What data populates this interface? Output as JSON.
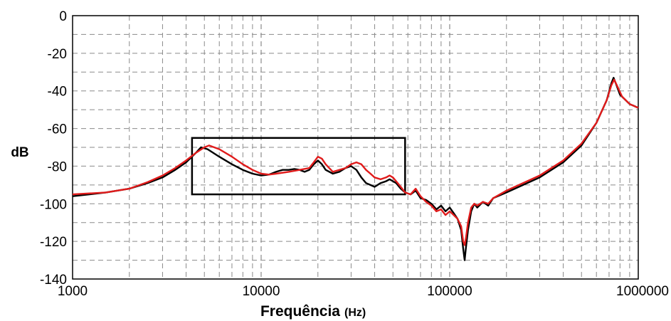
{
  "chart_data": {
    "type": "line",
    "xscale": "log",
    "xlim": [
      1000,
      1000000
    ],
    "ylim": [
      -140,
      0
    ],
    "xticks": [
      "1000",
      "10000",
      "100000",
      "1000000"
    ],
    "xtick_values": [
      1000,
      10000,
      100000,
      1000000
    ],
    "yticks": [
      "0",
      "-20",
      "-40",
      "-60",
      "-80",
      "-100",
      "-120",
      "-140"
    ],
    "ytick_values": [
      0,
      -20,
      -40,
      -60,
      -80,
      -100,
      -120,
      -140
    ],
    "xlabel": "Frequência",
    "xlabel_unit": "(Hz)",
    "ylabel": "dB",
    "grid": true,
    "highlight_box": {
      "x": [
        4300,
        58000
      ],
      "y": [
        -95,
        -65
      ]
    },
    "series": [
      {
        "color": "#000000",
        "points": [
          [
            1000,
            -96
          ],
          [
            1500,
            -94
          ],
          [
            2000,
            -92
          ],
          [
            2500,
            -89
          ],
          [
            3000,
            -86
          ],
          [
            3500,
            -82
          ],
          [
            4000,
            -78
          ],
          [
            4500,
            -73
          ],
          [
            4800,
            -70
          ],
          [
            5200,
            -71
          ],
          [
            6000,
            -75
          ],
          [
            7000,
            -79
          ],
          [
            8000,
            -82
          ],
          [
            9000,
            -84
          ],
          [
            10000,
            -85
          ],
          [
            11000,
            -84.5
          ],
          [
            12000,
            -83
          ],
          [
            13000,
            -82
          ],
          [
            14000,
            -82
          ],
          [
            15000,
            -81.5
          ],
          [
            16000,
            -82
          ],
          [
            17000,
            -83
          ],
          [
            18000,
            -82
          ],
          [
            19000,
            -79
          ],
          [
            20000,
            -77
          ],
          [
            21000,
            -79
          ],
          [
            22000,
            -82
          ],
          [
            24000,
            -84
          ],
          [
            26000,
            -83
          ],
          [
            28000,
            -81
          ],
          [
            30000,
            -80
          ],
          [
            32000,
            -82
          ],
          [
            34000,
            -86
          ],
          [
            36000,
            -89
          ],
          [
            38000,
            -90
          ],
          [
            40000,
            -91
          ],
          [
            43000,
            -89
          ],
          [
            46000,
            -88
          ],
          [
            48000,
            -87
          ],
          [
            52000,
            -89
          ],
          [
            55000,
            -92
          ],
          [
            58000,
            -94
          ],
          [
            62000,
            -95
          ],
          [
            66000,
            -93
          ],
          [
            70000,
            -97
          ],
          [
            75000,
            -98
          ],
          [
            80000,
            -100
          ],
          [
            85000,
            -103
          ],
          [
            90000,
            -101
          ],
          [
            95000,
            -104
          ],
          [
            100000,
            -102
          ],
          [
            105000,
            -105
          ],
          [
            110000,
            -108
          ],
          [
            115000,
            -114
          ],
          [
            118000,
            -124
          ],
          [
            120000,
            -130
          ],
          [
            122000,
            -123
          ],
          [
            125000,
            -114
          ],
          [
            130000,
            -104
          ],
          [
            135000,
            -100
          ],
          [
            140000,
            -102
          ],
          [
            150000,
            -99
          ],
          [
            160000,
            -101
          ],
          [
            170000,
            -97
          ],
          [
            200000,
            -94
          ],
          [
            300000,
            -86
          ],
          [
            400000,
            -78
          ],
          [
            500000,
            -69
          ],
          [
            600000,
            -57
          ],
          [
            680000,
            -45
          ],
          [
            720000,
            -36
          ],
          [
            740000,
            -33
          ],
          [
            760000,
            -36
          ],
          [
            800000,
            -42
          ],
          [
            900000,
            -47
          ],
          [
            1000000,
            -49
          ]
        ]
      },
      {
        "color": "#e01b1b",
        "points": [
          [
            1000,
            -95
          ],
          [
            1500,
            -94
          ],
          [
            2000,
            -92
          ],
          [
            2500,
            -88.5
          ],
          [
            3000,
            -85
          ],
          [
            3500,
            -81
          ],
          [
            4000,
            -77
          ],
          [
            4500,
            -73
          ],
          [
            5000,
            -70
          ],
          [
            5300,
            -69
          ],
          [
            6000,
            -71
          ],
          [
            7000,
            -75
          ],
          [
            8000,
            -79
          ],
          [
            9000,
            -82
          ],
          [
            10000,
            -84
          ],
          [
            11000,
            -84.5
          ],
          [
            12000,
            -84
          ],
          [
            14000,
            -83
          ],
          [
            16000,
            -82
          ],
          [
            18000,
            -81
          ],
          [
            19000,
            -78
          ],
          [
            20000,
            -75
          ],
          [
            21000,
            -76
          ],
          [
            22000,
            -79
          ],
          [
            24000,
            -83
          ],
          [
            26000,
            -82
          ],
          [
            28000,
            -81
          ],
          [
            30000,
            -79
          ],
          [
            32000,
            -78
          ],
          [
            34000,
            -79
          ],
          [
            36000,
            -82
          ],
          [
            38000,
            -84
          ],
          [
            40000,
            -86
          ],
          [
            43000,
            -87
          ],
          [
            46000,
            -86
          ],
          [
            48000,
            -85
          ],
          [
            50000,
            -86
          ],
          [
            52000,
            -88
          ],
          [
            55000,
            -91
          ],
          [
            58000,
            -94
          ],
          [
            62000,
            -95
          ],
          [
            66000,
            -92
          ],
          [
            70000,
            -96
          ],
          [
            75000,
            -99
          ],
          [
            80000,
            -101
          ],
          [
            85000,
            -104
          ],
          [
            90000,
            -103
          ],
          [
            95000,
            -106
          ],
          [
            100000,
            -104
          ],
          [
            105000,
            -106
          ],
          [
            110000,
            -108
          ],
          [
            115000,
            -112
          ],
          [
            118000,
            -120
          ],
          [
            120000,
            -122
          ],
          [
            122000,
            -118
          ],
          [
            125000,
            -110
          ],
          [
            130000,
            -102
          ],
          [
            135000,
            -100
          ],
          [
            140000,
            -101
          ],
          [
            150000,
            -99
          ],
          [
            160000,
            -100
          ],
          [
            170000,
            -97
          ],
          [
            200000,
            -93
          ],
          [
            300000,
            -85
          ],
          [
            400000,
            -77
          ],
          [
            500000,
            -68
          ],
          [
            600000,
            -57
          ],
          [
            680000,
            -45
          ],
          [
            720000,
            -37
          ],
          [
            745000,
            -34
          ],
          [
            770000,
            -37
          ],
          [
            820000,
            -43
          ],
          [
            900000,
            -47
          ],
          [
            1000000,
            -49
          ]
        ]
      }
    ]
  }
}
